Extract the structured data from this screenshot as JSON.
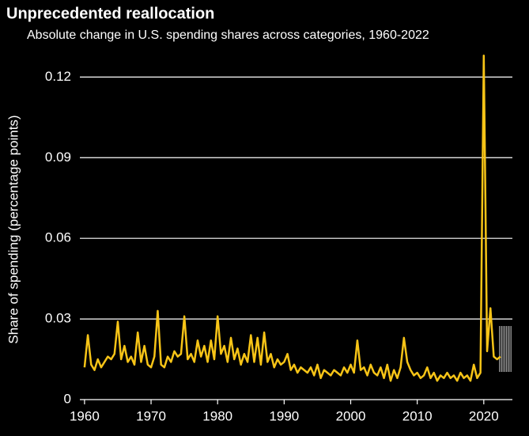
{
  "chart_data": {
    "type": "line",
    "title": "Unprecedented reallocation",
    "subtitle": "Absolute change in U.S. spending shares across categories, 1960-2022",
    "y_label": "Share of spending (percentage points)",
    "x": [
      1960,
      1960.5,
      1961,
      1961.5,
      1962,
      1962.5,
      1963,
      1963.5,
      1964,
      1964.5,
      1965,
      1965.5,
      1966,
      1966.5,
      1967,
      1967.5,
      1968,
      1968.5,
      1969,
      1969.5,
      1970,
      1970.5,
      1971,
      1971.5,
      1972,
      1972.5,
      1973,
      1973.5,
      1974,
      1974.5,
      1975,
      1975.5,
      1976,
      1976.5,
      1977,
      1977.5,
      1978,
      1978.5,
      1979,
      1979.5,
      1980,
      1980.5,
      1981,
      1981.5,
      1982,
      1982.5,
      1983,
      1983.5,
      1984,
      1984.5,
      1985,
      1985.5,
      1986,
      1986.5,
      1987,
      1987.5,
      1988,
      1988.5,
      1989,
      1989.5,
      1990,
      1990.5,
      1991,
      1991.5,
      1992,
      1992.5,
      1993,
      1993.5,
      1994,
      1994.5,
      1995,
      1995.5,
      1996,
      1996.5,
      1997,
      1997.5,
      1998,
      1998.5,
      1999,
      1999.5,
      2000,
      2000.5,
      2001,
      2001.5,
      2002,
      2002.5,
      2003,
      2003.5,
      2004,
      2004.5,
      2005,
      2005.5,
      2006,
      2006.5,
      2007,
      2007.5,
      2008,
      2008.5,
      2009,
      2009.5,
      2010,
      2010.5,
      2011,
      2011.5,
      2012,
      2012.5,
      2013,
      2013.5,
      2014,
      2014.5,
      2015,
      2015.5,
      2016,
      2016.5,
      2017,
      2017.5,
      2018,
      2018.5,
      2019,
      2019.5,
      2020,
      2020.5,
      2021,
      2021.5,
      2022,
      2022.5
    ],
    "series": [
      {
        "name": "Absolute change",
        "color": "#f7c417",
        "values": [
          0.012,
          0.024,
          0.013,
          0.011,
          0.015,
          0.012,
          0.014,
          0.016,
          0.015,
          0.017,
          0.029,
          0.015,
          0.02,
          0.014,
          0.016,
          0.013,
          0.025,
          0.014,
          0.02,
          0.013,
          0.012,
          0.016,
          0.033,
          0.013,
          0.012,
          0.016,
          0.014,
          0.018,
          0.016,
          0.017,
          0.031,
          0.015,
          0.017,
          0.014,
          0.022,
          0.016,
          0.02,
          0.014,
          0.022,
          0.015,
          0.031,
          0.017,
          0.02,
          0.014,
          0.023,
          0.015,
          0.019,
          0.013,
          0.017,
          0.014,
          0.024,
          0.014,
          0.023,
          0.013,
          0.025,
          0.014,
          0.017,
          0.012,
          0.015,
          0.013,
          0.014,
          0.017,
          0.011,
          0.013,
          0.01,
          0.012,
          0.011,
          0.01,
          0.012,
          0.009,
          0.013,
          0.008,
          0.011,
          0.01,
          0.009,
          0.011,
          0.01,
          0.009,
          0.012,
          0.01,
          0.013,
          0.01,
          0.022,
          0.011,
          0.012,
          0.009,
          0.013,
          0.01,
          0.009,
          0.012,
          0.008,
          0.013,
          0.007,
          0.011,
          0.008,
          0.012,
          0.023,
          0.014,
          0.011,
          0.009,
          0.01,
          0.008,
          0.009,
          0.012,
          0.008,
          0.01,
          0.007,
          0.009,
          0.008,
          0.01,
          0.008,
          0.009,
          0.007,
          0.01,
          0.008,
          0.009,
          0.007,
          0.013,
          0.008,
          0.01,
          0.128,
          0.018,
          0.034,
          0.016,
          0.015,
          0.016
        ]
      }
    ],
    "xlim": [
      1959.3,
      2024.3
    ],
    "xticks": [
      1960,
      1970,
      1980,
      1990,
      2000,
      2010,
      2020
    ],
    "ylim": [
      0,
      0.131
    ],
    "yticks": [
      0,
      0.03,
      0.06,
      0.09,
      0.12
    ],
    "grid": true
  }
}
